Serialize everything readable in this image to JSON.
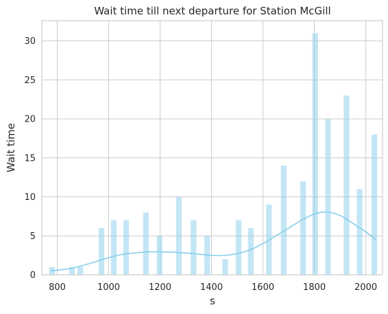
{
  "chart_data": {
    "type": "bar",
    "title": "Wait time till next departure for Station McGill",
    "xlabel": "s",
    "ylabel": "Wait time",
    "xlim": [
      740,
      2065
    ],
    "ylim": [
      0,
      32.6
    ],
    "xticks": [
      800,
      1000,
      1200,
      1400,
      1600,
      1800,
      2000
    ],
    "yticks": [
      0,
      5,
      10,
      15,
      20,
      25,
      30
    ],
    "grid": true,
    "bar_width": 22,
    "bars": [
      {
        "x": 780,
        "value": 1
      },
      {
        "x": 857,
        "value": 1
      },
      {
        "x": 890,
        "value": 1
      },
      {
        "x": 972,
        "value": 6
      },
      {
        "x": 1020,
        "value": 7
      },
      {
        "x": 1068,
        "value": 7
      },
      {
        "x": 1145,
        "value": 8
      },
      {
        "x": 1198,
        "value": 5
      },
      {
        "x": 1273,
        "value": 10
      },
      {
        "x": 1330,
        "value": 7
      },
      {
        "x": 1383,
        "value": 5
      },
      {
        "x": 1453,
        "value": 2
      },
      {
        "x": 1505,
        "value": 7
      },
      {
        "x": 1553,
        "value": 6
      },
      {
        "x": 1623,
        "value": 9
      },
      {
        "x": 1681,
        "value": 14
      },
      {
        "x": 1756,
        "value": 12
      },
      {
        "x": 1803,
        "value": 31
      },
      {
        "x": 1853,
        "value": 20
      },
      {
        "x": 1925,
        "value": 23
      },
      {
        "x": 1976,
        "value": 11
      },
      {
        "x": 2033,
        "value": 18
      }
    ],
    "kde": {
      "x": [
        775,
        850,
        900,
        950,
        1000,
        1050,
        1100,
        1150,
        1200,
        1250,
        1300,
        1350,
        1400,
        1450,
        1500,
        1550,
        1600,
        1650,
        1700,
        1750,
        1800,
        1850,
        1900,
        1950,
        2000,
        2040
      ],
      "y": [
        0.5,
        0.8,
        1.2,
        1.7,
        2.2,
        2.6,
        2.8,
        2.95,
        2.95,
        2.9,
        2.8,
        2.65,
        2.5,
        2.5,
        2.7,
        3.2,
        4.0,
        5.0,
        6.0,
        7.0,
        7.8,
        8.05,
        7.6,
        6.6,
        5.5,
        4.5
      ]
    },
    "colors": {
      "bar": "#87ceeb",
      "bar_opacity": 0.5,
      "kde_line": "#87ceeb"
    }
  }
}
